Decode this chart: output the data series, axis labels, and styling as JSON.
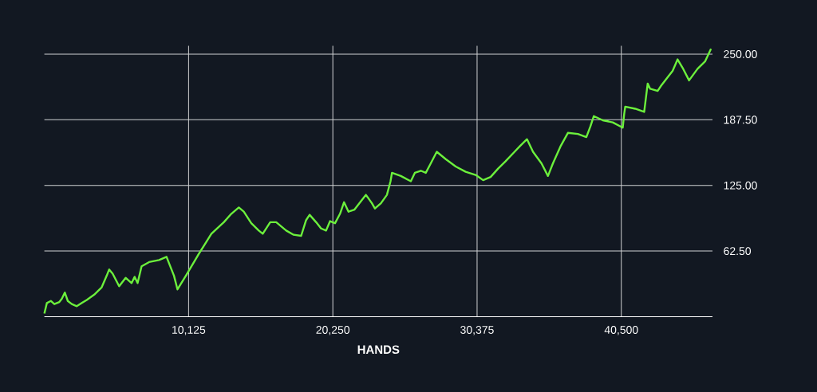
{
  "chart_data": {
    "type": "line",
    "xlabel": "HANDS",
    "x": [
      0,
      175,
      455,
      700,
      1050,
      1225,
      1435,
      1645,
      1925,
      2275,
      2625,
      2975,
      3500,
      4025,
      4375,
      4550,
      4795,
      5250,
      5705,
      6125,
      6335,
      6545,
      6825,
      7350,
      8050,
      8575,
      9100,
      9345,
      9975,
      10850,
      11725,
      12600,
      13125,
      13650,
      14000,
      14525,
      15050,
      15330,
      15855,
      16275,
      16975,
      17500,
      18025,
      18375,
      18620,
      19075,
      19425,
      19775,
      20055,
      20405,
      20755,
      21035,
      21350,
      21770,
      22225,
      22575,
      22995,
      23205,
      23625,
      24045,
      24300,
      24400,
      25025,
      25725,
      26005,
      26425,
      26775,
      27125,
      27545,
      28175,
      28875,
      29575,
      30275,
      30800,
      31325,
      31850,
      32375,
      33005,
      33425,
      33880,
      34300,
      34895,
      35350,
      35700,
      36225,
      36750,
      37450,
      38045,
      38325,
      38570,
      39200,
      39900,
      40600,
      40700,
      40775,
      41475,
      42105,
      42350,
      42525,
      43050,
      43295,
      43750,
      44100,
      44450,
      44800,
      45255,
      45850,
      46375,
      46795
    ],
    "values": [
      3,
      13,
      15,
      12,
      14,
      17,
      23,
      15,
      12,
      10,
      13,
      16,
      21,
      28,
      39,
      45,
      41,
      29,
      37,
      32,
      38,
      32,
      48,
      52,
      54,
      57,
      39,
      26,
      40,
      60,
      79,
      90,
      98,
      104,
      100,
      89,
      82,
      79,
      90,
      90,
      82,
      78,
      77,
      92,
      97,
      90,
      84,
      82,
      91,
      89,
      98,
      109,
      100,
      102,
      110,
      116,
      108,
      103,
      108,
      116,
      129,
      137,
      134,
      129,
      137,
      139,
      137,
      146,
      157,
      150,
      143,
      138,
      135,
      130,
      133,
      141,
      148,
      157,
      163,
      169,
      157,
      146,
      134,
      146,
      162,
      175,
      174,
      171,
      181,
      191,
      187,
      185,
      180,
      193,
      200,
      198,
      195,
      222,
      217,
      215,
      220,
      228,
      234,
      245,
      237,
      225,
      236,
      243,
      255
    ],
    "color": "#6cf03c",
    "xlim": [
      0,
      46900
    ],
    "ylim": [
      0,
      258
    ],
    "xticks": [
      {
        "value": 10125,
        "label": "10,125"
      },
      {
        "value": 20250,
        "label": "20,250"
      },
      {
        "value": 30375,
        "label": "30,375"
      },
      {
        "value": 40500,
        "label": "40,500"
      }
    ],
    "yticks": [
      {
        "value": 62.5,
        "label": "62.50"
      },
      {
        "value": 125,
        "label": "125.00"
      },
      {
        "value": 187.5,
        "label": "187.50"
      },
      {
        "value": 250,
        "label": "250.00"
      }
    ],
    "grid": true
  }
}
